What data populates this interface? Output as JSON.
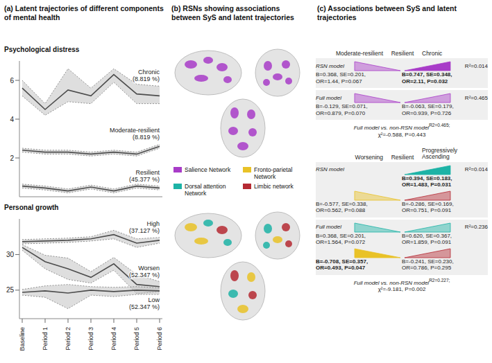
{
  "chart_data": [
    {
      "type": "line",
      "title": "Psychological distress",
      "categories": [
        "Baseline",
        "Period 1",
        "Period 2",
        "Period 3",
        "Period 4",
        "Period 5",
        "Period 6"
      ],
      "series": [
        {
          "name": "Chronic (8.819 %)",
          "color": "#4d4d4d",
          "values": [
            5.6,
            4.5,
            5.5,
            5.2,
            6.3,
            5.3,
            5.2
          ],
          "lower": [
            5.2,
            4.2,
            4.9,
            4.8,
            5.9,
            4.8,
            4.8
          ],
          "upper": [
            6.0,
            4.8,
            6.6,
            5.6,
            6.6,
            5.8,
            5.7
          ]
        },
        {
          "name": "Moderate-resilient (8.819 %)",
          "color": "#4d4d4d",
          "values": [
            2.4,
            2.3,
            2.3,
            2.2,
            2.3,
            2.2,
            2.6
          ],
          "lower": [
            2.3,
            2.2,
            2.2,
            2.1,
            2.2,
            2.1,
            2.5
          ],
          "upper": [
            2.5,
            2.4,
            2.4,
            2.3,
            2.4,
            2.3,
            2.7
          ]
        },
        {
          "name": "Resilient (45.377 %)",
          "color": "#4d4d4d",
          "values": [
            0.55,
            0.45,
            0.3,
            0.5,
            0.3,
            0.55,
            0.45
          ],
          "lower": [
            0.45,
            0.35,
            0.2,
            0.4,
            0.2,
            0.45,
            0.35
          ],
          "upper": [
            0.65,
            0.55,
            0.4,
            0.6,
            0.4,
            0.65,
            0.55
          ]
        }
      ],
      "ylim": [
        0,
        7
      ],
      "yticks": [
        2,
        4,
        6
      ],
      "tick_labels": "y"
    },
    {
      "type": "line",
      "title": "Personal growth",
      "categories": [
        "Baseline",
        "Period 1",
        "Period 2",
        "Period 3",
        "Period 4",
        "Period 5",
        "Period 6"
      ],
      "series": [
        {
          "name": "High (37.127 %)",
          "color": "#4d4d4d",
          "values": [
            31.8,
            31.9,
            32.0,
            32.2,
            32.8,
            31.6,
            32.0
          ],
          "lower": [
            31.5,
            31.6,
            31.7,
            31.9,
            32.2,
            31.0,
            31.6
          ],
          "upper": [
            32.1,
            32.2,
            32.3,
            32.5,
            33.4,
            32.2,
            32.4
          ]
        },
        {
          "name": "Worsen (52.347 %)",
          "color": "#4d4d4d",
          "values": [
            31.0,
            29.0,
            28.0,
            26.8,
            28.7,
            25.8,
            25.5
          ],
          "lower": [
            30.6,
            28.0,
            26.5,
            26.0,
            27.8,
            24.5,
            24.8
          ],
          "upper": [
            31.4,
            29.9,
            29.5,
            27.6,
            29.6,
            27.2,
            26.2
          ]
        },
        {
          "name": "Low (52.347 %)",
          "color": "#4d4d4d",
          "values": [
            24.7,
            24.9,
            24.6,
            25.0,
            24.8,
            25.0,
            24.9
          ],
          "lower": [
            24.3,
            24.0,
            22.4,
            24.3,
            24.1,
            24.4,
            24.4
          ],
          "upper": [
            25.1,
            25.6,
            25.8,
            25.5,
            25.4,
            25.5,
            25.3
          ]
        }
      ],
      "ylim": [
        21,
        35
      ],
      "yticks": [
        25,
        30
      ]
    }
  ],
  "panel_a": {
    "title": "(a) Latent trajectories of different components of mental health"
  },
  "panel_b": {
    "title": "(b) RSNs showing associations between SyS and latent trajectories",
    "networks": [
      {
        "name": "Salience Network",
        "color": "#a83cc8"
      },
      {
        "name": "Fronto-parietal Network",
        "color": "#e9c227"
      },
      {
        "name": "Dorsal attention Network",
        "color": "#1db3a6"
      },
      {
        "name": "Limbic network",
        "color": "#b52a33"
      }
    ]
  },
  "panel_c": {
    "title": "(c) Associations between SyS and latent trajectories",
    "blocks": [
      {
        "columns": [
          "Moderate-resilient",
          "Resilient",
          "Chronic"
        ],
        "models": [
          {
            "name": "RSN model",
            "r2": "R²=0.014",
            "tiers": [
              {
                "left": {
                  "color": "#a83cc8",
                  "bold": false,
                  "lines": [
                    "B=0.368, SE=0.201,",
                    "OR=1.44, P=0.067"
                  ]
                },
                "right": {
                  "color": "#a83cc8",
                  "bold": true,
                  "lines": [
                    "B=0.747, SE=0.348,",
                    "OR=2.11, P=0.032"
                  ]
                }
              }
            ]
          },
          {
            "name": "Full model",
            "r2": "R²=0.465",
            "tiers": [
              {
                "left": {
                  "color": "#a83cc8",
                  "bold": false,
                  "lines": [
                    "B=-0.129, SE=0.071,",
                    "OR=0.879, P=0.070"
                  ]
                },
                "right": {
                  "color": "#a83cc8",
                  "bold": false,
                  "lines": [
                    "B=-0.063, SE=0.179,",
                    "OR=0.939, P=0.726"
                  ]
                }
              }
            ]
          }
        ],
        "comparison": {
          "head": "Full model vs. non-RSN model",
          "sup": "R2=0.465;",
          "tail": "χ²=-0.588, P=0.443"
        }
      },
      {
        "columns": [
          "Worsening",
          "Resilient",
          "Progressively Ascending"
        ],
        "models": [
          {
            "name": "RSN model",
            "r2": "R²=0.014",
            "tiers": [
              {
                "left": null,
                "right": {
                  "color": "#1db3a6",
                  "bold": true,
                  "lines": [
                    "B=0.394, SE=0.183,",
                    "OR=1.483, P=0.031"
                  ]
                }
              },
              {
                "left": {
                  "color": "#e9c227",
                  "bold": false,
                  "lines": [
                    "B=-0.577, SE=0.338,",
                    "OR=0.562, P=0.088"
                  ]
                },
                "right": {
                  "color": "#b52a33",
                  "bold": false,
                  "lines": [
                    "B=-0.286, SE=0.169,",
                    "OR=0.751, P=0.091"
                  ]
                }
              }
            ]
          },
          {
            "name": "Full model",
            "r2": "R²=0.236",
            "tiers": [
              {
                "left": {
                  "color": "#1db3a6",
                  "bold": false,
                  "lines": [
                    "B=0.368, SE=0.201,",
                    "OR=1.564, P=0.072"
                  ]
                },
                "right": {
                  "color": "#1db3a6",
                  "bold": false,
                  "lines": [
                    "B=0.620, SE=0.367,",
                    "OR=1.859, P=0.091"
                  ]
                }
              },
              {
                "left": {
                  "color": "#e9c227",
                  "bold": true,
                  "lines": [
                    "B=-0.708, SE=0.357,",
                    "OR=0.493, P=0.047"
                  ]
                },
                "right": {
                  "color": "#b52a33",
                  "bold": false,
                  "lines": [
                    "B=-0.241, SE=0.230,",
                    "OR=0.786, P=0.295"
                  ]
                }
              }
            ]
          }
        ],
        "comparison": {
          "head": "Full model vs. non-RSN model",
          "sup": "R2=0.227;",
          "tail": "χ²=-9.181, P=0.002"
        }
      }
    ]
  }
}
